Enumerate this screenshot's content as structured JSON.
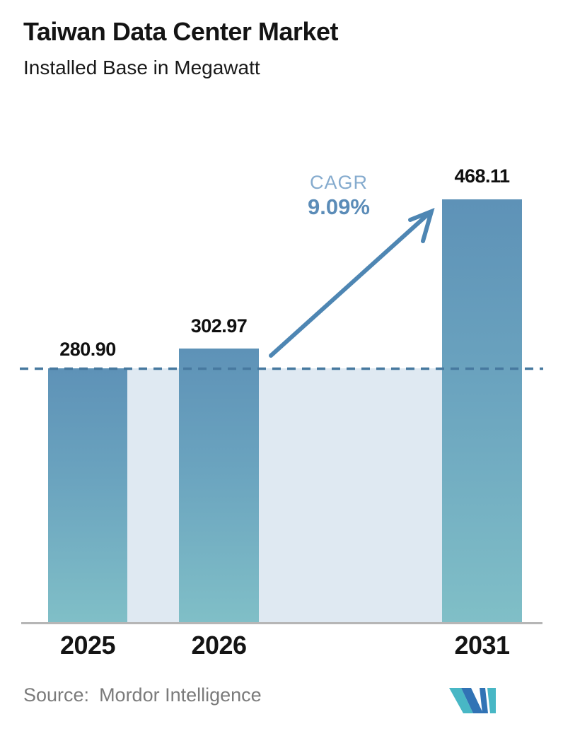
{
  "header": {
    "title": "Taiwan Data Center Market",
    "subtitle": "Installed Base in Megawatt"
  },
  "chart_data": {
    "type": "bar",
    "title": "Taiwan Data Center Market",
    "subtitle": "Installed Base in Megawatt",
    "categories": [
      "2025",
      "2026",
      "2031"
    ],
    "values": [
      280.9,
      302.97,
      468.11
    ],
    "value_labels": [
      "280.90",
      "302.97",
      "468.11"
    ],
    "unit": "Megawatt",
    "ylim": [
      0,
      500
    ],
    "grid": "off",
    "baseline_dashed_at": 280.9,
    "annotations": {
      "cagr_label": "CAGR",
      "cagr_value": "9.09%"
    }
  },
  "footer": {
    "source_label": "Source:",
    "source_value": "Mordor Intelligence"
  },
  "colors": {
    "bar_top": "#5e92b7",
    "bar_bottom": "#80bfc7",
    "band_fill": "#dfe9f2",
    "dashed_line": "#47799f",
    "arrow": "#4e86b3",
    "cagr_label_text": "#85abce",
    "cagr_value_text": "#5b8cb8",
    "axis": "#b6b6b6",
    "source_text": "#7b7b7b",
    "logo_teal": "#48b7c5",
    "logo_blue": "#3173b5"
  }
}
